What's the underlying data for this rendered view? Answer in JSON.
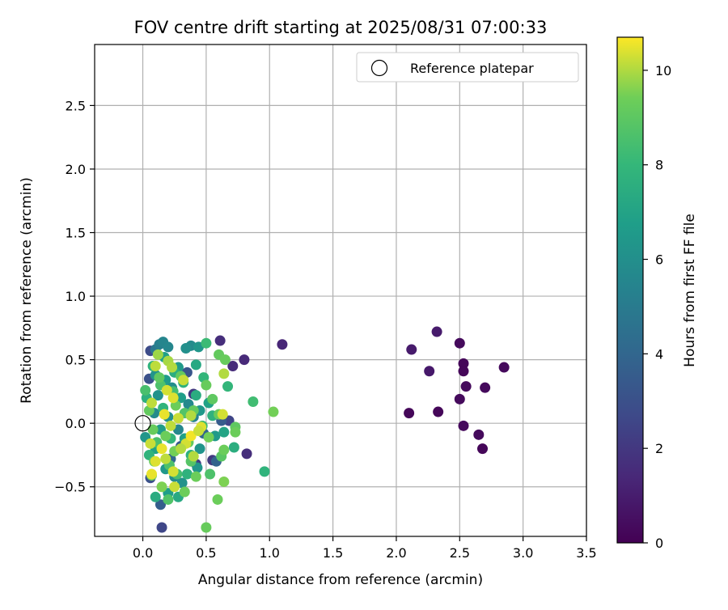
{
  "chart_data": {
    "type": "scatter",
    "title": "FOV centre drift starting at 2025/08/31 07:00:33",
    "xlabel": "Angular distance from reference (arcmin)",
    "ylabel": "Rotation from reference (arcmin)",
    "xlim": [
      -0.38,
      3.5
    ],
    "ylim": [
      -0.89,
      2.98
    ],
    "x_ticks": [
      0.0,
      0.5,
      1.0,
      1.5,
      2.0,
      2.5,
      3.0,
      3.5
    ],
    "x_tick_labels": [
      "0.0",
      "0.5",
      "1.0",
      "1.5",
      "2.0",
      "2.5",
      "3.0",
      "3.5"
    ],
    "y_ticks": [
      -0.5,
      0.0,
      0.5,
      1.0,
      1.5,
      2.0,
      2.5
    ],
    "y_tick_labels": [
      "−0.5",
      "0.0",
      "0.5",
      "1.0",
      "1.5",
      "2.0",
      "2.5"
    ],
    "grid": true,
    "legend": {
      "position": "top-right",
      "entries": [
        {
          "label": "Reference platepar",
          "marker": "open-circle"
        }
      ]
    },
    "reference_point": {
      "x": 0.0,
      "y": 0.0
    },
    "colorbar": {
      "label": "Hours from first FF file",
      "colormap": "viridis",
      "range": [
        0,
        10.7
      ],
      "ticks": [
        0,
        2,
        4,
        6,
        8,
        10
      ],
      "tick_labels": [
        "0",
        "2",
        "4",
        "6",
        "8",
        "10"
      ]
    },
    "points": [
      {
        "x": 2.85,
        "y": 0.44,
        "c": 0.3
      },
      {
        "x": 2.7,
        "y": 0.28,
        "c": 0.3
      },
      {
        "x": 2.68,
        "y": -0.2,
        "c": 0.2
      },
      {
        "x": 2.65,
        "y": -0.09,
        "c": 0.3
      },
      {
        "x": 2.55,
        "y": 0.29,
        "c": 0.3
      },
      {
        "x": 2.53,
        "y": 0.47,
        "c": 0.2
      },
      {
        "x": 2.53,
        "y": 0.41,
        "c": 0.2
      },
      {
        "x": 2.53,
        "y": -0.02,
        "c": 0.3
      },
      {
        "x": 2.5,
        "y": 0.63,
        "c": 0.3
      },
      {
        "x": 2.5,
        "y": 0.19,
        "c": 0.3
      },
      {
        "x": 2.33,
        "y": 0.09,
        "c": 0.2
      },
      {
        "x": 2.32,
        "y": 0.72,
        "c": 0.9
      },
      {
        "x": 2.26,
        "y": 0.41,
        "c": 0.8
      },
      {
        "x": 2.12,
        "y": 0.58,
        "c": 0.9
      },
      {
        "x": 2.1,
        "y": 0.08,
        "c": 0.2
      },
      {
        "x": 1.1,
        "y": 0.62,
        "c": 1.3
      },
      {
        "x": 0.8,
        "y": 0.5,
        "c": 1.4
      },
      {
        "x": 0.82,
        "y": -0.24,
        "c": 1.6
      },
      {
        "x": 0.71,
        "y": 0.45,
        "c": 1.5
      },
      {
        "x": 0.61,
        "y": 0.65,
        "c": 1.6
      },
      {
        "x": 0.68,
        "y": 0.02,
        "c": 2.5
      },
      {
        "x": 0.55,
        "y": -0.29,
        "c": 2.0
      },
      {
        "x": 0.4,
        "y": 0.23,
        "c": 2.0
      },
      {
        "x": 0.42,
        "y": -0.32,
        "c": 2.2
      },
      {
        "x": 0.15,
        "y": -0.82,
        "c": 2.6
      },
      {
        "x": 0.06,
        "y": 0.57,
        "c": 2.8
      },
      {
        "x": 0.05,
        "y": 0.35,
        "c": 3.0
      },
      {
        "x": 0.06,
        "y": -0.43,
        "c": 3.0
      },
      {
        "x": 0.58,
        "y": -0.3,
        "c": 3.8
      },
      {
        "x": 0.62,
        "y": 0.02,
        "c": 3.5
      },
      {
        "x": 0.35,
        "y": 0.4,
        "c": 3.2
      },
      {
        "x": 0.14,
        "y": -0.64,
        "c": 3.6
      },
      {
        "x": 0.3,
        "y": -0.18,
        "c": 3.4
      },
      {
        "x": 0.22,
        "y": -0.28,
        "c": 4.0
      },
      {
        "x": 0.48,
        "y": -0.08,
        "c": 3.9
      },
      {
        "x": 0.1,
        "y": 0.58,
        "c": 4.8
      },
      {
        "x": 0.13,
        "y": 0.62,
        "c": 5.2
      },
      {
        "x": 0.16,
        "y": 0.64,
        "c": 5.5
      },
      {
        "x": 0.2,
        "y": 0.6,
        "c": 5.6
      },
      {
        "x": 0.38,
        "y": 0.61,
        "c": 5.8
      },
      {
        "x": 0.34,
        "y": 0.59,
        "c": 6.0
      },
      {
        "x": 0.44,
        "y": 0.6,
        "c": 6.3
      },
      {
        "x": 0.42,
        "y": 0.46,
        "c": 7.2
      },
      {
        "x": 0.17,
        "y": 0.52,
        "c": 6.8
      },
      {
        "x": 0.28,
        "y": 0.44,
        "c": 6.5
      },
      {
        "x": 0.1,
        "y": 0.38,
        "c": 6.2
      },
      {
        "x": 0.18,
        "y": 0.34,
        "c": 6.6
      },
      {
        "x": 0.23,
        "y": 0.28,
        "c": 5.9
      },
      {
        "x": 0.12,
        "y": 0.22,
        "c": 6.1
      },
      {
        "x": 0.3,
        "y": 0.2,
        "c": 6.7
      },
      {
        "x": 0.36,
        "y": 0.15,
        "c": 5.7
      },
      {
        "x": 0.45,
        "y": 0.1,
        "c": 6.4
      },
      {
        "x": 0.52,
        "y": 0.16,
        "c": 6.9
      },
      {
        "x": 0.4,
        "y": 0.05,
        "c": 5.4
      },
      {
        "x": 0.2,
        "y": 0.05,
        "c": 6.0
      },
      {
        "x": 0.09,
        "y": 0.08,
        "c": 5.8
      },
      {
        "x": 0.02,
        "y": -0.11,
        "c": 6.3
      },
      {
        "x": 0.14,
        "y": -0.05,
        "c": 6.6
      },
      {
        "x": 0.28,
        "y": -0.05,
        "c": 5.6
      },
      {
        "x": 0.33,
        "y": -0.12,
        "c": 6.8
      },
      {
        "x": 0.45,
        "y": -0.2,
        "c": 6.2
      },
      {
        "x": 0.57,
        "y": -0.1,
        "c": 6.5
      },
      {
        "x": 0.64,
        "y": -0.07,
        "c": 7.0
      },
      {
        "x": 0.1,
        "y": -0.2,
        "c": 6.9
      },
      {
        "x": 0.18,
        "y": -0.36,
        "c": 6.4
      },
      {
        "x": 0.25,
        "y": -0.42,
        "c": 5.8
      },
      {
        "x": 0.31,
        "y": -0.47,
        "c": 6.1
      },
      {
        "x": 0.2,
        "y": -0.55,
        "c": 6.7
      },
      {
        "x": 0.28,
        "y": -0.58,
        "c": 7.3
      },
      {
        "x": 0.1,
        "y": -0.58,
        "c": 7.4
      },
      {
        "x": 0.43,
        "y": -0.35,
        "c": 6.3
      },
      {
        "x": 0.38,
        "y": -0.25,
        "c": 7.6
      },
      {
        "x": 0.08,
        "y": 0.45,
        "c": 7.8
      },
      {
        "x": 0.25,
        "y": 0.4,
        "c": 7.5
      },
      {
        "x": 0.32,
        "y": 0.32,
        "c": 7.7
      },
      {
        "x": 0.48,
        "y": 0.36,
        "c": 7.9
      },
      {
        "x": 0.03,
        "y": 0.2,
        "c": 7.6
      },
      {
        "x": 0.16,
        "y": 0.12,
        "c": 7.8
      },
      {
        "x": 0.42,
        "y": 0.22,
        "c": 7.4
      },
      {
        "x": 0.55,
        "y": 0.06,
        "c": 7.7
      },
      {
        "x": 0.67,
        "y": 0.29,
        "c": 7.9
      },
      {
        "x": 0.87,
        "y": 0.17,
        "c": 8.3
      },
      {
        "x": 0.96,
        "y": -0.38,
        "c": 7.8
      },
      {
        "x": 0.72,
        "y": -0.19,
        "c": 7.5
      },
      {
        "x": 0.22,
        "y": -0.12,
        "c": 7.9
      },
      {
        "x": 0.05,
        "y": -0.25,
        "c": 7.8
      },
      {
        "x": 0.35,
        "y": -0.4,
        "c": 7.7
      },
      {
        "x": 0.5,
        "y": 0.63,
        "c": 8.2
      },
      {
        "x": 0.02,
        "y": 0.26,
        "c": 8.5
      },
      {
        "x": 0.14,
        "y": 0.3,
        "c": 8.6
      },
      {
        "x": 0.24,
        "y": 0.25,
        "c": 8.4
      },
      {
        "x": 0.33,
        "y": 0.08,
        "c": 8.7
      },
      {
        "x": 0.47,
        "y": -0.02,
        "c": 8.3
      },
      {
        "x": 0.11,
        "y": -0.15,
        "c": 8.5
      },
      {
        "x": 0.21,
        "y": -0.33,
        "c": 8.6
      },
      {
        "x": 0.27,
        "y": -0.4,
        "c": 8.4
      },
      {
        "x": 0.38,
        "y": -0.3,
        "c": 8.8
      },
      {
        "x": 0.53,
        "y": -0.4,
        "c": 8.6
      },
      {
        "x": 0.2,
        "y": -0.6,
        "c": 8.7
      },
      {
        "x": 0.62,
        "y": -0.26,
        "c": 8.9
      },
      {
        "x": 0.73,
        "y": -0.03,
        "c": 9.0
      },
      {
        "x": 0.6,
        "y": 0.54,
        "c": 9.1
      },
      {
        "x": 0.65,
        "y": 0.5,
        "c": 9.2
      },
      {
        "x": 0.13,
        "y": 0.36,
        "c": 9.0
      },
      {
        "x": 0.3,
        "y": 0.37,
        "c": 9.1
      },
      {
        "x": 0.5,
        "y": 0.3,
        "c": 9.2
      },
      {
        "x": 0.55,
        "y": 0.19,
        "c": 9.0
      },
      {
        "x": 0.05,
        "y": 0.1,
        "c": 9.1
      },
      {
        "x": 0.26,
        "y": 0.14,
        "c": 9.3
      },
      {
        "x": 0.4,
        "y": 0.1,
        "c": 9.1
      },
      {
        "x": 0.6,
        "y": 0.07,
        "c": 9.2
      },
      {
        "x": 0.73,
        "y": -0.07,
        "c": 9.3
      },
      {
        "x": 1.03,
        "y": 0.09,
        "c": 9.4
      },
      {
        "x": 0.08,
        "y": -0.05,
        "c": 9.2
      },
      {
        "x": 0.18,
        "y": -0.1,
        "c": 9.3
      },
      {
        "x": 0.36,
        "y": -0.15,
        "c": 9.1
      },
      {
        "x": 0.52,
        "y": -0.11,
        "c": 9.4
      },
      {
        "x": 0.64,
        "y": -0.21,
        "c": 9.3
      },
      {
        "x": 0.09,
        "y": -0.3,
        "c": 9.2
      },
      {
        "x": 0.25,
        "y": -0.22,
        "c": 9.4
      },
      {
        "x": 0.42,
        "y": -0.42,
        "c": 9.3
      },
      {
        "x": 0.64,
        "y": -0.46,
        "c": 9.5
      },
      {
        "x": 0.59,
        "y": -0.6,
        "c": 9.3
      },
      {
        "x": 0.5,
        "y": -0.82,
        "c": 9.2
      },
      {
        "x": 0.07,
        "y": -0.41,
        "c": 9.4
      },
      {
        "x": 0.15,
        "y": -0.5,
        "c": 9.5
      },
      {
        "x": 0.33,
        "y": -0.54,
        "c": 9.3
      },
      {
        "x": 0.12,
        "y": 0.54,
        "c": 9.8
      },
      {
        "x": 0.2,
        "y": 0.49,
        "c": 9.9
      },
      {
        "x": 0.23,
        "y": 0.44,
        "c": 10.0
      },
      {
        "x": 0.1,
        "y": 0.45,
        "c": 10.1
      },
      {
        "x": 0.64,
        "y": 0.39,
        "c": 10.0
      },
      {
        "x": 0.32,
        "y": 0.34,
        "c": 10.2
      },
      {
        "x": 0.19,
        "y": 0.26,
        "c": 10.3
      },
      {
        "x": 0.07,
        "y": 0.16,
        "c": 10.1
      },
      {
        "x": 0.24,
        "y": 0.2,
        "c": 10.4
      },
      {
        "x": 0.28,
        "y": 0.04,
        "c": 10.2
      },
      {
        "x": 0.38,
        "y": 0.06,
        "c": 10.0
      },
      {
        "x": 0.63,
        "y": 0.07,
        "c": 10.3
      },
      {
        "x": 0.17,
        "y": 0.07,
        "c": 10.5
      },
      {
        "x": 0.22,
        "y": -0.02,
        "c": 10.1
      },
      {
        "x": 0.46,
        "y": -0.03,
        "c": 10.4
      },
      {
        "x": 0.06,
        "y": -0.16,
        "c": 10.2
      },
      {
        "x": 0.15,
        "y": -0.2,
        "c": 10.5
      },
      {
        "x": 0.34,
        "y": -0.16,
        "c": 10.3
      },
      {
        "x": 0.38,
        "y": -0.1,
        "c": 10.6
      },
      {
        "x": 0.44,
        "y": -0.06,
        "c": 10.2
      },
      {
        "x": 0.3,
        "y": -0.2,
        "c": 10.0
      },
      {
        "x": 0.1,
        "y": -0.3,
        "c": 10.4
      },
      {
        "x": 0.18,
        "y": -0.28,
        "c": 10.1
      },
      {
        "x": 0.24,
        "y": -0.38,
        "c": 10.3
      },
      {
        "x": 0.07,
        "y": -0.4,
        "c": 10.5
      },
      {
        "x": 0.25,
        "y": -0.5,
        "c": 10.2
      },
      {
        "x": 0.4,
        "y": -0.26,
        "c": 10.0
      }
    ]
  }
}
